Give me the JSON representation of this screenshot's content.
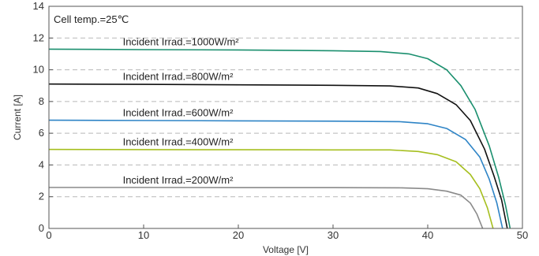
{
  "chart_data": {
    "type": "line",
    "xlabel": "Voltage [V]",
    "ylabel": "Current [A]",
    "xlim": [
      0,
      50
    ],
    "ylim": [
      0,
      14
    ],
    "x_ticks": [
      0,
      10,
      20,
      30,
      40,
      50
    ],
    "y_ticks": [
      0,
      2,
      4,
      6,
      8,
      10,
      12,
      14
    ],
    "grid": "horizontal-dashed",
    "annotation": "Cell temp.=25℃",
    "series": [
      {
        "name": "Incident Irrad.=1000W/m²",
        "color": "#1a8f6e",
        "points": [
          [
            0,
            11.3
          ],
          [
            10,
            11.27
          ],
          [
            20,
            11.25
          ],
          [
            30,
            11.2
          ],
          [
            35,
            11.15
          ],
          [
            38,
            11.0
          ],
          [
            40,
            10.7
          ],
          [
            42,
            10.0
          ],
          [
            43.5,
            9.0
          ],
          [
            45,
            7.5
          ],
          [
            46.5,
            5.2
          ],
          [
            47.5,
            3.2
          ],
          [
            48.2,
            1.5
          ],
          [
            48.7,
            0
          ]
        ]
      },
      {
        "name": "Incident Irrad.=800W/m²",
        "color": "#111111",
        "points": [
          [
            0,
            9.1
          ],
          [
            10,
            9.08
          ],
          [
            20,
            9.05
          ],
          [
            30,
            9.02
          ],
          [
            36,
            8.98
          ],
          [
            39,
            8.85
          ],
          [
            41,
            8.5
          ],
          [
            43,
            7.8
          ],
          [
            44.5,
            6.8
          ],
          [
            46,
            5.0
          ],
          [
            47,
            3.3
          ],
          [
            47.8,
            1.8
          ],
          [
            48.4,
            0
          ]
        ]
      },
      {
        "name": "Incident Irrad.=600W/m²",
        "color": "#2e84c6",
        "points": [
          [
            0,
            6.82
          ],
          [
            10,
            6.8
          ],
          [
            20,
            6.78
          ],
          [
            30,
            6.76
          ],
          [
            37,
            6.73
          ],
          [
            40,
            6.6
          ],
          [
            42,
            6.3
          ],
          [
            44,
            5.6
          ],
          [
            45.5,
            4.5
          ],
          [
            46.5,
            3.1
          ],
          [
            47.3,
            1.6
          ],
          [
            47.9,
            0
          ]
        ]
      },
      {
        "name": "Incident Irrad.=400W/m²",
        "color": "#a6bf1f",
        "points": [
          [
            0,
            4.98
          ],
          [
            10,
            4.97
          ],
          [
            20,
            4.96
          ],
          [
            30,
            4.95
          ],
          [
            36,
            4.95
          ],
          [
            39,
            4.85
          ],
          [
            41,
            4.65
          ],
          [
            43,
            4.2
          ],
          [
            44.5,
            3.4
          ],
          [
            45.5,
            2.5
          ],
          [
            46.3,
            1.3
          ],
          [
            46.9,
            0
          ]
        ]
      },
      {
        "name": "Incident Irrad.=200W/m²",
        "color": "#8a8a8a",
        "points": [
          [
            0,
            2.58
          ],
          [
            10,
            2.58
          ],
          [
            20,
            2.57
          ],
          [
            30,
            2.57
          ],
          [
            37,
            2.56
          ],
          [
            40,
            2.5
          ],
          [
            42,
            2.35
          ],
          [
            43.5,
            2.1
          ],
          [
            44.5,
            1.6
          ],
          [
            45.2,
            0.9
          ],
          [
            45.8,
            0
          ]
        ]
      }
    ]
  }
}
